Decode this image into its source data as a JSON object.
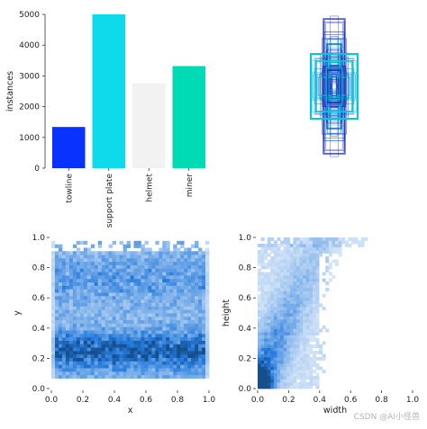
{
  "watermark": "CSDN @AI小怪兽",
  "chart_data": [
    {
      "type": "bar",
      "ylabel": "instances",
      "ylim": [
        0,
        5000
      ],
      "yticks": [
        "0",
        "1000",
        "2000",
        "3000",
        "4000",
        "5000"
      ],
      "categories": [
        "towline",
        "support plate",
        "helmet",
        "miner"
      ],
      "values": [
        1340,
        5000,
        2760,
        3320
      ],
      "colors": [
        "#0a32ff",
        "#0ddbec",
        "#f2f2f2",
        "#00dbb5"
      ]
    },
    {
      "type": "boxes-overlay",
      "note_colors": [
        "#1f2bb0",
        "#00c8e0",
        "#3a4fcf"
      ]
    },
    {
      "type": "heatmap",
      "xlabel": "x",
      "ylabel": "y",
      "xlim": [
        0,
        1
      ],
      "ylim": [
        0,
        1
      ],
      "xticks": [
        "0.0",
        "0.2",
        "0.4",
        "0.6",
        "0.8",
        "1.0"
      ],
      "yticks": [
        "0.0",
        "0.2",
        "0.4",
        "0.6",
        "0.8",
        "1.0"
      ],
      "color": "#1f77d4"
    },
    {
      "type": "heatmap",
      "xlabel": "width",
      "ylabel": "height",
      "xlim": [
        0,
        1
      ],
      "ylim": [
        0,
        1
      ],
      "xticks": [
        "0.0",
        "0.2",
        "0.4",
        "0.6",
        "0.8",
        "1.0"
      ],
      "yticks": [
        "0.0",
        "0.2",
        "0.4",
        "0.6",
        "0.8",
        "1.0"
      ],
      "color": "#1f77d4"
    }
  ]
}
